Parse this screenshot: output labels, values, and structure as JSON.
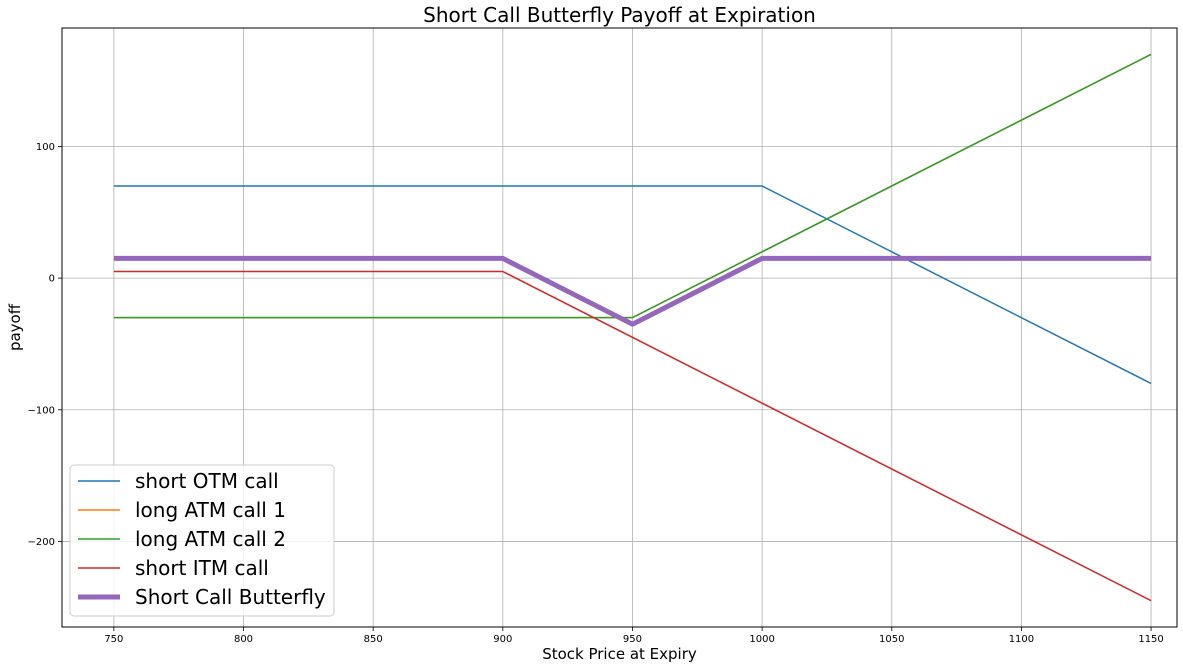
{
  "chart_data": {
    "type": "line",
    "title": "Short Call Butterfly Payoff at Expiration",
    "xlabel": "Stock Price at Expiry",
    "ylabel": "payoff",
    "xlim": [
      730,
      1160
    ],
    "ylim": [
      -265,
      190
    ],
    "x_ticks": [
      750,
      800,
      850,
      900,
      950,
      1000,
      1050,
      1100,
      1150
    ],
    "y_ticks": [
      -200,
      -100,
      0,
      100
    ],
    "grid": true,
    "legend_position": "lower-left",
    "series": [
      {
        "name": "short OTM call",
        "color": "#1f77b4",
        "width": 1.5,
        "points": [
          [
            750,
            70
          ],
          [
            1000,
            70
          ],
          [
            1150,
            -80
          ]
        ]
      },
      {
        "name": "long ATM call 1",
        "color": "#ff7f0e",
        "width": 1.5,
        "points": [
          [
            750,
            -30
          ],
          [
            950,
            -30
          ],
          [
            1150,
            170
          ]
        ]
      },
      {
        "name": "long ATM call 2",
        "color": "#2ca02c",
        "width": 1.5,
        "points": [
          [
            750,
            -30
          ],
          [
            950,
            -30
          ],
          [
            1150,
            170
          ]
        ]
      },
      {
        "name": "short ITM call",
        "color": "#d62728",
        "width": 1.5,
        "points": [
          [
            750,
            5
          ],
          [
            900,
            5
          ],
          [
            1150,
            -245
          ]
        ]
      },
      {
        "name": "Short Call Butterfly",
        "color": "#9467bd",
        "width": 5,
        "points": [
          [
            750,
            15
          ],
          [
            900,
            15
          ],
          [
            950,
            -35
          ],
          [
            1000,
            15
          ],
          [
            1150,
            15
          ]
        ]
      }
    ]
  }
}
